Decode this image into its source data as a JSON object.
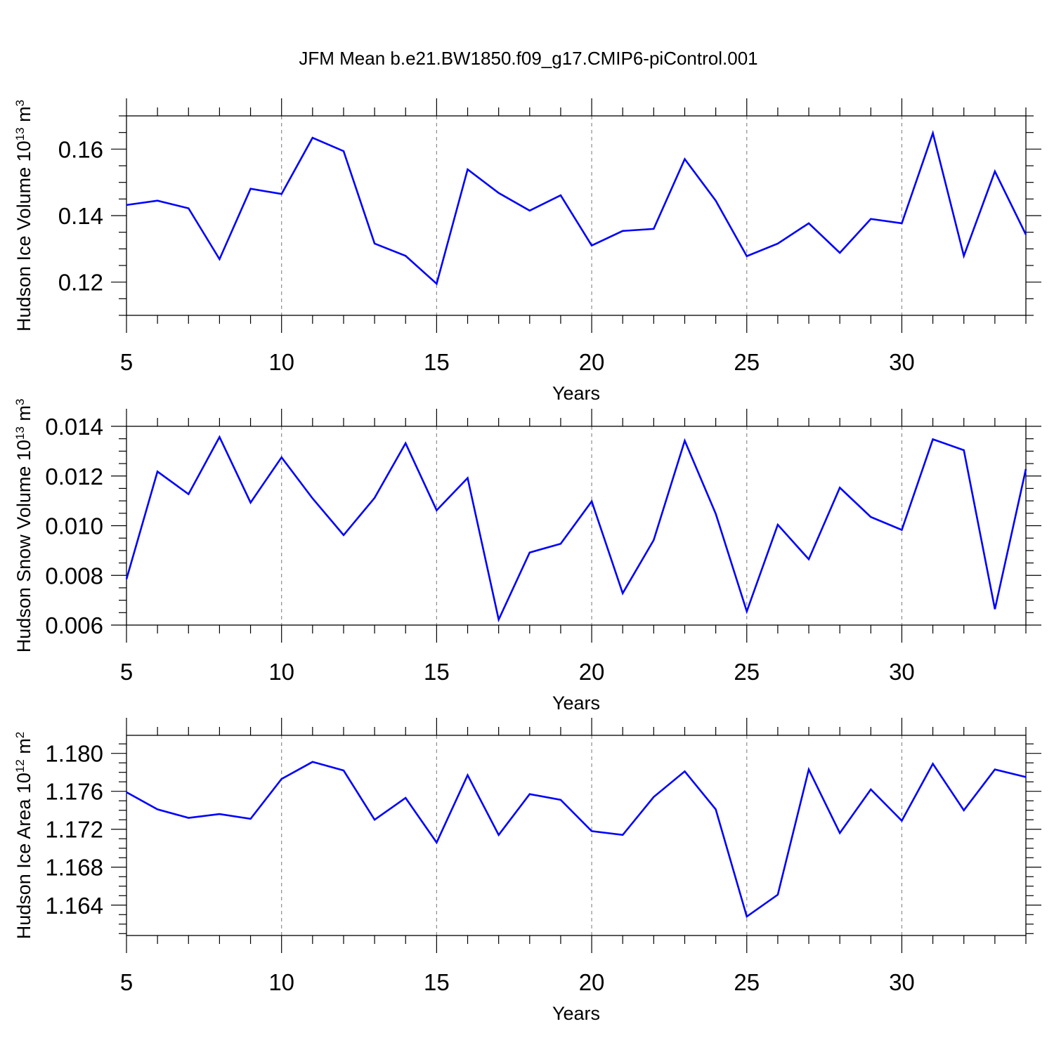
{
  "title": "JFM Mean b.e21.BW1850.f09_g17.CMIP6-piControl.001",
  "colors": {
    "line": "#0000ff",
    "axis": "#000000",
    "grid": "#8c8c8c"
  },
  "chart_data": [
    {
      "type": "line",
      "ylabel": "Hudson Ice Volume",
      "ylabel_unit_base": "10",
      "ylabel_unit_exp": "13",
      "ylabel_unit_tail": "m",
      "ylabel_unit_tail_exp": "3",
      "xlabel": "Years",
      "xlim": [
        5,
        34
      ],
      "ylim": [
        0.11,
        0.17
      ],
      "x_ticks": [
        5,
        10,
        15,
        20,
        25,
        30
      ],
      "x_tick_labels": [
        "5",
        "10",
        "15",
        "20",
        "25",
        "30"
      ],
      "y_ticks": [
        0.12,
        0.14,
        0.16
      ],
      "y_tick_labels": [
        "0.12",
        "0.14",
        "0.16"
      ],
      "y_minor_step": 0.005,
      "grid": "dashed vertical at major x ticks",
      "series": [
        {
          "x": [
            5,
            6,
            7,
            8,
            9,
            10,
            11,
            12,
            13,
            14,
            15,
            16,
            17,
            18,
            19,
            20,
            21,
            22,
            23,
            24,
            25,
            26,
            27,
            28,
            29,
            30,
            31,
            32,
            33,
            34
          ],
          "values": [
            0.1432,
            0.1445,
            0.1422,
            0.1269,
            0.1481,
            0.1465,
            0.1634,
            0.1594,
            0.1316,
            0.1279,
            0.1195,
            0.1539,
            0.1468,
            0.1415,
            0.1461,
            0.131,
            0.1354,
            0.136,
            0.157,
            0.1445,
            0.1278,
            0.1316,
            0.1377,
            0.1288,
            0.139,
            0.1377,
            0.1648,
            0.1279,
            0.1533,
            0.1343
          ]
        }
      ]
    },
    {
      "type": "line",
      "ylabel": "Hudson Snow Volume",
      "ylabel_unit_base": "10",
      "ylabel_unit_exp": "13",
      "ylabel_unit_tail": "m",
      "ylabel_unit_tail_exp": "3",
      "xlabel": "Years",
      "xlim": [
        5,
        34
      ],
      "ylim": [
        0.006,
        0.014
      ],
      "x_ticks": [
        5,
        10,
        15,
        20,
        25,
        30
      ],
      "x_tick_labels": [
        "5",
        "10",
        "15",
        "20",
        "25",
        "30"
      ],
      "y_ticks": [
        0.006,
        0.008,
        0.01,
        0.012,
        0.014
      ],
      "y_tick_labels": [
        "0.006",
        "0.008",
        "0.010",
        "0.012",
        "0.014"
      ],
      "y_minor_step": 0.0005,
      "grid": "dashed vertical at major x ticks",
      "series": [
        {
          "x": [
            5,
            6,
            7,
            8,
            9,
            10,
            11,
            12,
            13,
            14,
            15,
            16,
            17,
            18,
            19,
            20,
            21,
            22,
            23,
            24,
            25,
            26,
            27,
            28,
            29,
            30,
            31,
            32,
            33,
            34
          ],
          "values": [
            0.00785,
            0.01218,
            0.01127,
            0.01357,
            0.01093,
            0.01275,
            0.0111,
            0.00962,
            0.01112,
            0.01332,
            0.01062,
            0.01192,
            0.00622,
            0.00892,
            0.00927,
            0.01098,
            0.00728,
            0.00942,
            0.01342,
            0.01048,
            0.00655,
            0.01004,
            0.00865,
            0.01153,
            0.01035,
            0.00983,
            0.01348,
            0.01304,
            0.00664,
            0.01228
          ]
        }
      ]
    },
    {
      "type": "line",
      "ylabel": "Hudson Ice Area",
      "ylabel_unit_base": "10",
      "ylabel_unit_exp": "12",
      "ylabel_unit_tail": "m",
      "ylabel_unit_tail_exp": "2",
      "xlabel": "Years",
      "xlim": [
        5,
        34
      ],
      "ylim": [
        1.1608,
        1.1819
      ],
      "x_ticks": [
        5,
        10,
        15,
        20,
        25,
        30
      ],
      "x_tick_labels": [
        "5",
        "10",
        "15",
        "20",
        "25",
        "30"
      ],
      "y_ticks": [
        1.164,
        1.168,
        1.172,
        1.176,
        1.18
      ],
      "y_tick_labels": [
        "1.164",
        "1.168",
        "1.172",
        "1.176",
        "1.180"
      ],
      "y_minor_step": 0.001,
      "grid": "dashed vertical at major x ticks",
      "series": [
        {
          "x": [
            5,
            6,
            7,
            8,
            9,
            10,
            11,
            12,
            13,
            14,
            15,
            16,
            17,
            18,
            19,
            20,
            21,
            22,
            23,
            24,
            25,
            26,
            27,
            28,
            29,
            30,
            31,
            32,
            33,
            34
          ],
          "values": [
            1.1759,
            1.1741,
            1.1732,
            1.1736,
            1.1731,
            1.1773,
            1.1791,
            1.1782,
            1.173,
            1.1753,
            1.1706,
            1.1777,
            1.1714,
            1.1757,
            1.1751,
            1.1718,
            1.1714,
            1.1754,
            1.1781,
            1.1741,
            1.1628,
            1.1651,
            1.1783,
            1.1716,
            1.1762,
            1.1729,
            1.1789,
            1.174,
            1.1783,
            1.1775
          ]
        }
      ]
    }
  ]
}
